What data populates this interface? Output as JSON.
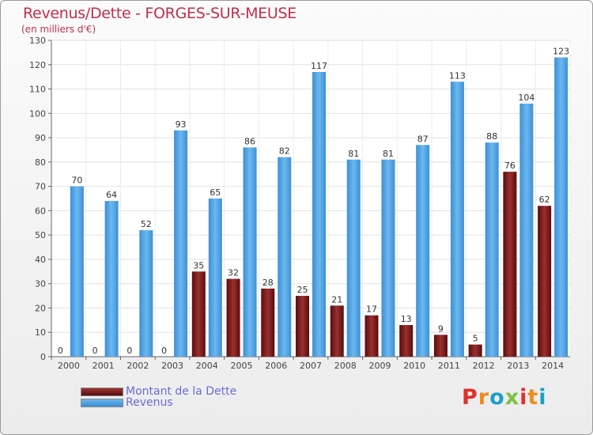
{
  "title": "Revenus/Dette - FORGES-SUR-MEUSE",
  "subtitle": "(en milliers d'€)",
  "logo_text": "Proxiti",
  "colors": {
    "debt": "#7a1c1c",
    "revenue": "#4aa0e0",
    "title": "#c0304c",
    "legend_text": "#6a6cd9"
  },
  "legend": [
    {
      "label": "Montant de la Dette",
      "color": "#7a1c1c"
    },
    {
      "label": "Revenus",
      "color": "#4aa0e0"
    }
  ],
  "chart_data": {
    "type": "bar",
    "categories": [
      "2000",
      "2001",
      "2002",
      "2003",
      "2004",
      "2005",
      "2006",
      "2007",
      "2008",
      "2009",
      "2010",
      "2011",
      "2012",
      "2013",
      "2014"
    ],
    "series": [
      {
        "name": "Montant de la Dette",
        "values": [
          0,
          0,
          0,
          0,
          35,
          32,
          28,
          25,
          21,
          17,
          13,
          9,
          5,
          76,
          62
        ]
      },
      {
        "name": "Revenus",
        "values": [
          70,
          64,
          52,
          93,
          65,
          86,
          82,
          117,
          81,
          81,
          87,
          113,
          88,
          104,
          123
        ]
      }
    ],
    "ylim": [
      0,
      130
    ],
    "yticks": [
      0,
      10,
      20,
      30,
      40,
      50,
      60,
      70,
      80,
      90,
      100,
      110,
      120,
      130
    ],
    "grid": true,
    "legend_position": "bottom-left"
  }
}
